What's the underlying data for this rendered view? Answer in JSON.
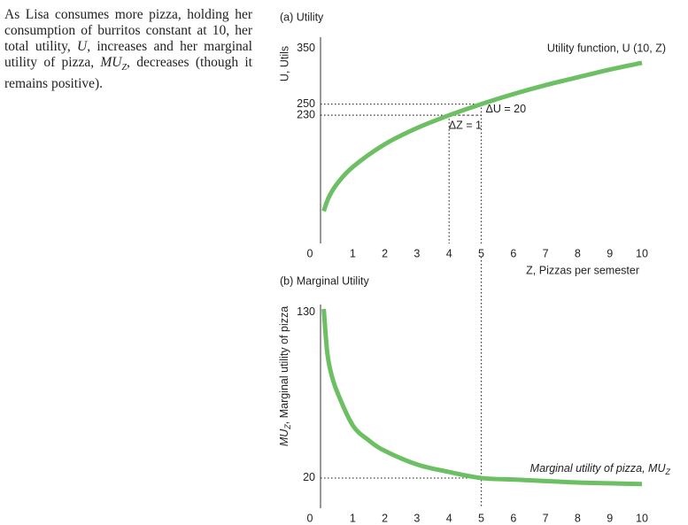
{
  "caption": [
    "As Lisa consumes more pizza, holding her consumption of burritos constant at 10, her total utility, ",
    "U",
    ", increases and her marginal utility of pizza, ",
    "MU",
    "Z",
    ", decreases (though it remains positive)."
  ],
  "chart_data": [
    {
      "type": "line",
      "title": "(a) Utility",
      "xlabel": "Z, Pizzas per semester",
      "ylabel": "U, Utils",
      "x": [
        0.1,
        0.25,
        0.5,
        1,
        2,
        3,
        4,
        5,
        6,
        7,
        8,
        9,
        10
      ],
      "series": [
        {
          "name": "Utility function, U (10, Z)",
          "color": "#6cbf63",
          "values": [
            58,
            82,
            106,
            137,
            178,
            207,
            230,
            250,
            268,
            284,
            298,
            312,
            324
          ]
        }
      ],
      "xlim": [
        0,
        10
      ],
      "xticks": [
        0,
        1,
        2,
        3,
        4,
        5,
        6,
        7,
        8,
        9,
        10
      ],
      "ylim": [
        0,
        370
      ],
      "yticks": [
        230,
        250,
        350
      ],
      "grid": false,
      "guides": [
        {
          "x": 4,
          "y": 230
        },
        {
          "x": 5,
          "y": 250
        }
      ],
      "annotations": [
        "ΔU = 20",
        "ΔZ = 1"
      ]
    },
    {
      "type": "line",
      "title": "(b) Marginal Utility",
      "ylabel": {
        "main": "MU",
        "sub": "Z",
        "rest": ", Marginal utility of pizza"
      },
      "x": [
        0.1,
        0.2,
        0.3,
        0.5,
        1,
        1.5,
        2,
        3,
        4,
        5,
        6,
        7,
        8,
        9,
        10
      ],
      "series": [
        {
          "name": {
            "main": "Marginal utility of pizza, MU",
            "sub": "Z"
          },
          "color": "#6cbf63",
          "values": [
            132,
            105,
            92,
            78,
            55,
            45,
            38,
            29,
            24,
            20,
            19,
            18,
            17,
            16.5,
            16
          ]
        }
      ],
      "xlim": [
        0,
        10
      ],
      "xticks": [
        0,
        1,
        2,
        3,
        4,
        5,
        6,
        7,
        8,
        9,
        10
      ],
      "ylim": [
        0,
        135
      ],
      "yticks": [
        20,
        130
      ],
      "grid": false,
      "guides": [
        {
          "x": 5,
          "y": 20
        }
      ]
    }
  ]
}
